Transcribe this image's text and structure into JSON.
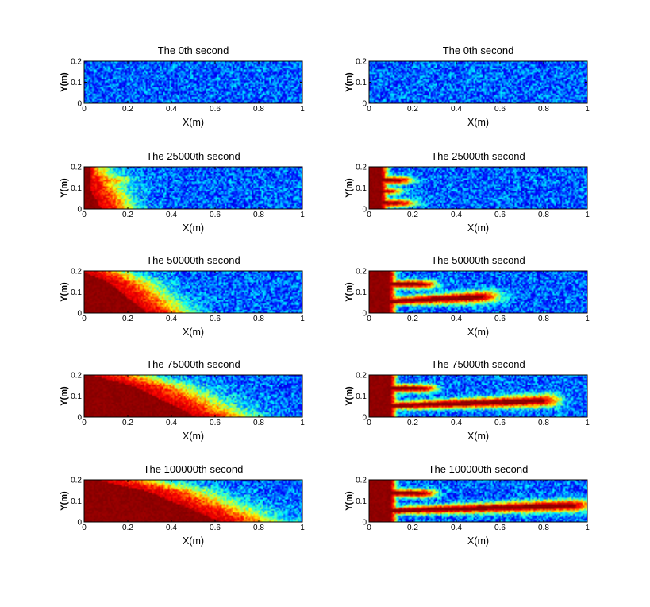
{
  "chart_data": {
    "type": "heatmap",
    "layout": {
      "rows": 5,
      "cols": 2
    },
    "colormap": "jet",
    "colors": [
      "#00008f",
      "#0000ff",
      "#00ffff",
      "#ffff00",
      "#ff0000",
      "#800000"
    ],
    "xlabel": "X(m)",
    "ylabel": "Y(m)",
    "xlim": [
      0,
      1
    ],
    "ylim": [
      0,
      0.2
    ],
    "xticks": [
      0,
      0.2,
      0.4,
      0.6,
      0.8,
      1
    ],
    "xtick_labels": [
      "0",
      "0.2",
      "0.4",
      "0.6",
      "0.8",
      "1"
    ],
    "yticks": [
      0,
      0.1,
      0.2
    ],
    "ytick_labels": [
      "0",
      "0.1",
      "0.2"
    ],
    "panels": [
      {
        "title": "The 0th second",
        "time_s": 0,
        "column": "left",
        "pattern": "diffuse",
        "front_x": 0.0
      },
      {
        "title": "The 0th second",
        "time_s": 0,
        "column": "right",
        "pattern": "fingering",
        "front_x": 0.0
      },
      {
        "title": "The 25000th second",
        "time_s": 25000,
        "column": "left",
        "pattern": "diffuse",
        "front_x": 0.2
      },
      {
        "title": "The 25000th second",
        "time_s": 25000,
        "column": "right",
        "pattern": "fingering",
        "front_x": 0.2
      },
      {
        "title": "The 50000th second",
        "time_s": 50000,
        "column": "left",
        "pattern": "diffuse",
        "front_x": 0.45
      },
      {
        "title": "The 50000th second",
        "time_s": 50000,
        "column": "right",
        "pattern": "fingering",
        "front_x": 0.58
      },
      {
        "title": "The 75000th second",
        "time_s": 75000,
        "column": "left",
        "pattern": "diffuse",
        "front_x": 0.72
      },
      {
        "title": "The 75000th second",
        "time_s": 75000,
        "column": "right",
        "pattern": "fingering",
        "front_x": 0.86
      },
      {
        "title": "The 100000th second",
        "time_s": 100000,
        "column": "left",
        "pattern": "diffuse",
        "front_x": 0.85
      },
      {
        "title": "The 100000th second",
        "time_s": 100000,
        "column": "right",
        "pattern": "fingering",
        "front_x": 1.0
      }
    ]
  }
}
